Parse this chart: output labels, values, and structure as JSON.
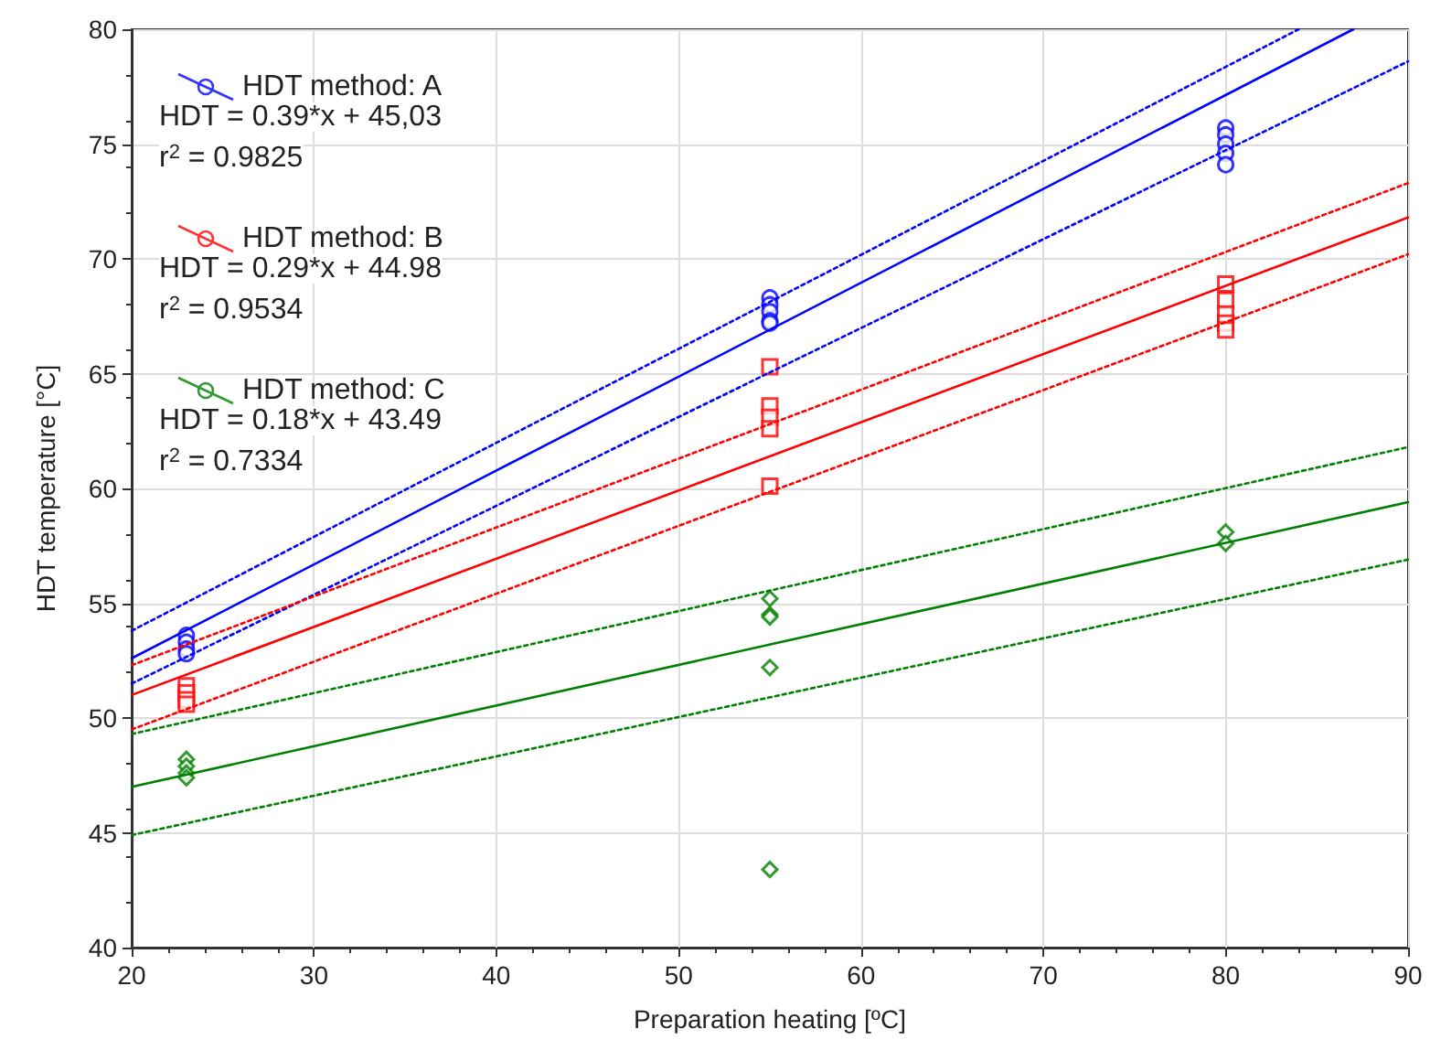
{
  "chart_data": {
    "type": "scatter",
    "xlabel": "Preparation heating [ºC]",
    "ylabel": "HDT temperature [°C]",
    "xlim": [
      20,
      90
    ],
    "xticks": [
      20,
      30,
      40,
      50,
      60,
      70,
      80,
      90
    ],
    "ylim": [
      40,
      80
    ],
    "yticks": [
      40,
      45,
      50,
      55,
      60,
      65,
      70,
      75,
      80
    ],
    "grid": true,
    "legend": "top left",
    "annotations": [
      "HDT = 0.39*x + 45,03",
      "r$^{2}$ = 0.9825",
      "HDT = 0.29*x + 44.98",
      "r$^{2}$ = 0.9534",
      "HDT = 0.18*x + 43.49",
      "r$^{2}$ = 0.7334"
    ],
    "series": [
      {
        "name": "HDT method: A",
        "color": "#0000ff",
        "marker": "circle",
        "x": [
          23,
          23,
          23,
          23,
          55,
          55,
          55,
          55,
          55,
          80,
          80,
          80,
          80,
          80
        ],
        "values": [
          53.6,
          53.3,
          53.0,
          52.8,
          68.3,
          68.0,
          67.7,
          67.3,
          67.2,
          75.7,
          75.4,
          75.0,
          74.6,
          74.1
        ]
      },
      {
        "name": "HDT method: B",
        "color": "#ff0000",
        "marker": "square",
        "x": [
          23,
          23,
          23,
          23,
          55,
          55,
          55,
          55,
          55,
          80,
          80,
          80,
          80,
          80
        ],
        "values": [
          51.4,
          51.1,
          50.8,
          50.6,
          65.3,
          63.6,
          63.1,
          62.6,
          60.1,
          68.9,
          68.2,
          67.6,
          67.2,
          66.9
        ]
      },
      {
        "name": "HDT method: C",
        "color": "#008000",
        "marker": "diamond",
        "x": [
          23,
          23,
          23,
          23,
          55,
          55,
          55,
          55,
          55,
          80,
          80
        ],
        "values": [
          48.2,
          47.9,
          47.6,
          47.4,
          55.2,
          54.5,
          54.4,
          52.2,
          43.4,
          58.1,
          57.6
        ]
      },
      {
        "type": "line",
        "color": "#0000ff",
        "marker": "none",
        "line_style": "solid",
        "x": [
          20,
          87
        ],
        "values": [
          52.6,
          80
        ]
      },
      {
        "type": "line",
        "color": "#0000ff",
        "marker": "none",
        "line_style": "dotted",
        "x": [
          20,
          84
        ],
        "values": [
          53.8,
          80
        ]
      },
      {
        "type": "line",
        "color": "#0000ff",
        "marker": "none",
        "line_style": "dotted",
        "x": [
          20,
          90
        ],
        "values": [
          51.5,
          78.6
        ]
      },
      {
        "type": "line",
        "color": "#ff0000",
        "marker": "none",
        "line_style": "solid",
        "x": [
          20,
          90
        ],
        "values": [
          51.0,
          71.8
        ]
      },
      {
        "type": "line",
        "color": "#ff0000",
        "marker": "none",
        "line_style": "dotted",
        "x": [
          20,
          90
        ],
        "values": [
          52.3,
          73.3
        ]
      },
      {
        "type": "line",
        "color": "#ff0000",
        "marker": "none",
        "line_style": "dotted",
        "x": [
          20,
          90
        ],
        "values": [
          49.5,
          70.2
        ]
      },
      {
        "type": "line",
        "color": "#008000",
        "marker": "none",
        "line_style": "solid",
        "x": [
          20,
          90
        ],
        "values": [
          47.0,
          59.4
        ]
      },
      {
        "type": "line",
        "color": "#008000",
        "marker": "none",
        "line_style": "dotted",
        "x": [
          20,
          90
        ],
        "values": [
          49.3,
          61.8
        ]
      },
      {
        "type": "line",
        "color": "#008000",
        "marker": "none",
        "line_style": "dotted",
        "x": [
          20,
          90
        ],
        "values": [
          44.9,
          56.9
        ]
      }
    ]
  }
}
